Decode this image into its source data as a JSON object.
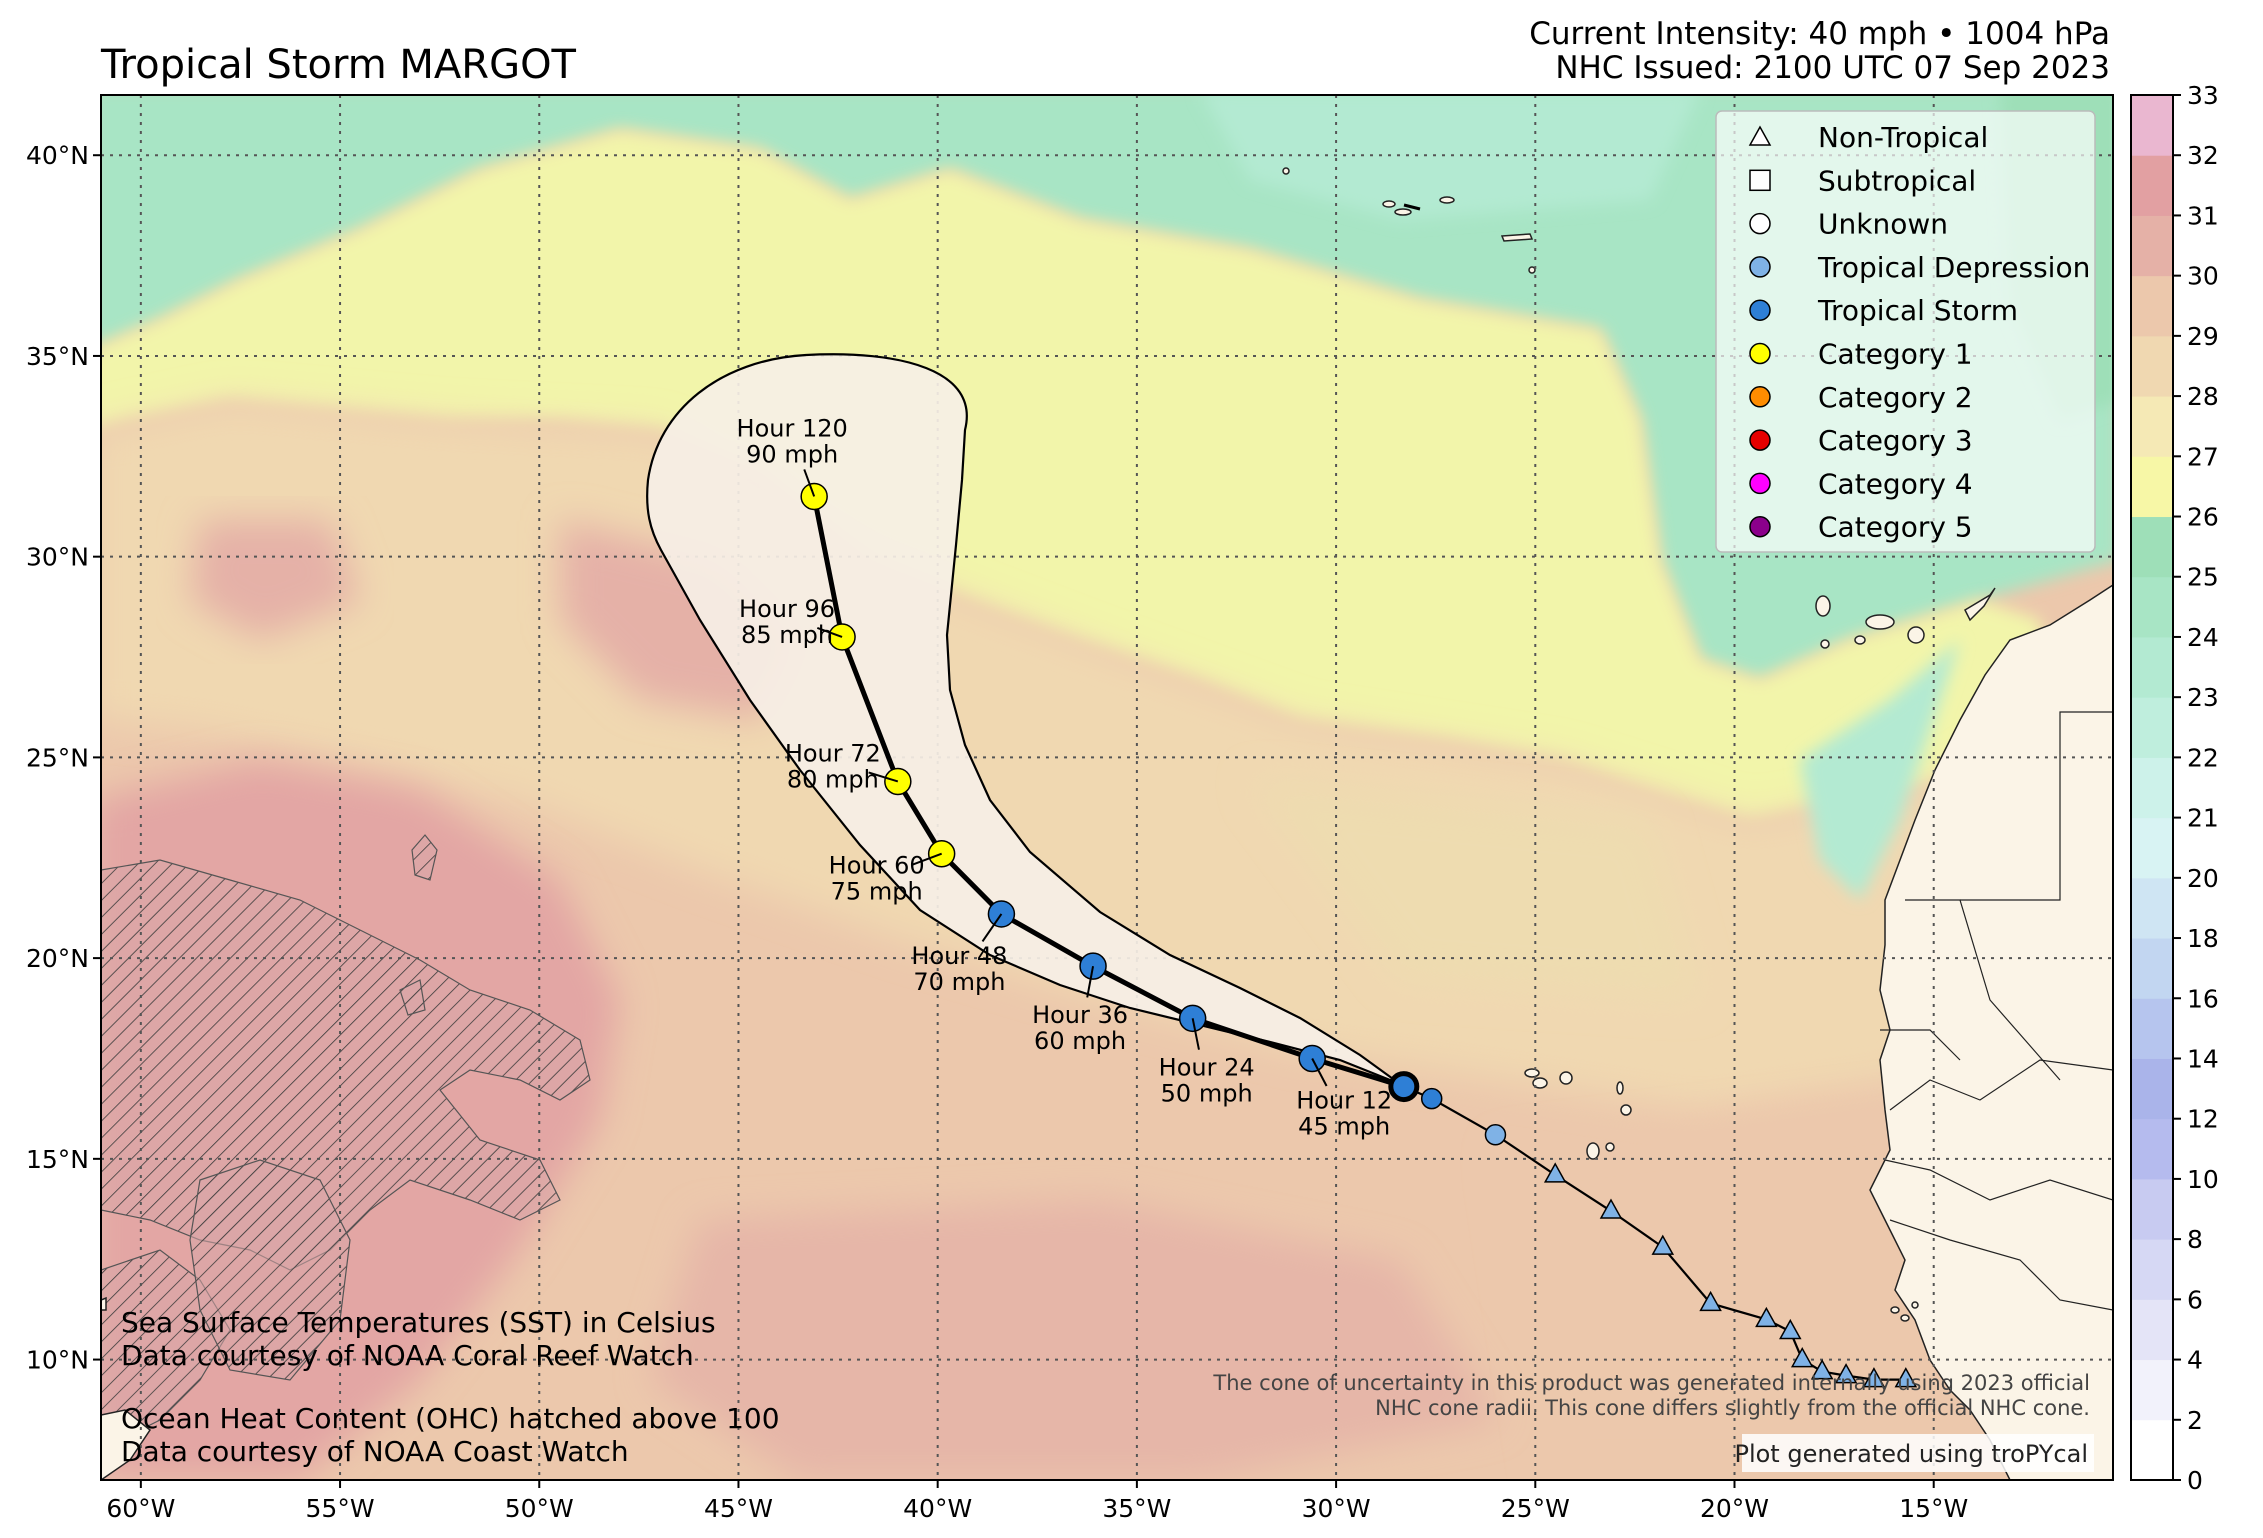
{
  "title": "Tropical Storm MARGOT",
  "header": {
    "intensity": "Current Intensity: 40 mph • 1004 hPa",
    "issued": "NHC Issued: 2100 UTC 07 Sep 2023"
  },
  "map": {
    "lon_range": [
      -61,
      -10.5
    ],
    "lat_range": [
      7,
      41.5
    ],
    "lon_ticks": [
      -60,
      -55,
      -50,
      -45,
      -40,
      -35,
      -30,
      -25,
      -20,
      -15
    ],
    "lon_tick_labels": [
      "60°W",
      "55°W",
      "50°W",
      "45°W",
      "40°W",
      "35°W",
      "30°W",
      "25°W",
      "20°W",
      "15°W"
    ],
    "lat_ticks": [
      10,
      15,
      20,
      25,
      30,
      35,
      40
    ],
    "lat_tick_labels": [
      "10°N",
      "15°N",
      "20°N",
      "25°N",
      "30°N",
      "35°N",
      "40°N"
    ],
    "grid": true
  },
  "legend": {
    "placement": "top-right",
    "items": [
      {
        "label": "Non-Tropical",
        "symbol": "triangle",
        "color": "#ffffff"
      },
      {
        "label": "Subtropical",
        "symbol": "square",
        "color": "#ffffff"
      },
      {
        "label": "Unknown",
        "symbol": "circle",
        "color": "#ffffff"
      },
      {
        "label": "Tropical Depression",
        "symbol": "circle",
        "color": "#7fb2e6"
      },
      {
        "label": "Tropical Storm",
        "symbol": "circle",
        "color": "#2e7fd6"
      },
      {
        "label": "Category 1",
        "symbol": "circle",
        "color": "#ffff00"
      },
      {
        "label": "Category 2",
        "symbol": "circle",
        "color": "#ff8c00"
      },
      {
        "label": "Category 3",
        "symbol": "circle",
        "color": "#e60000"
      },
      {
        "label": "Category 4",
        "symbol": "circle",
        "color": "#ff00ff"
      },
      {
        "label": "Category 5",
        "symbol": "circle",
        "color": "#8b008b"
      }
    ]
  },
  "colorbar": {
    "ticks": [
      0,
      2,
      4,
      6,
      8,
      10,
      12,
      14,
      16,
      18,
      20,
      21,
      22,
      23,
      24,
      25,
      26,
      27,
      28,
      29,
      30,
      31,
      32,
      33
    ],
    "tick_labels": [
      "0",
      "2",
      "4",
      "6",
      "8",
      "10",
      "12",
      "14",
      "16",
      "18",
      "20",
      "21",
      "22",
      "23",
      "24",
      "25",
      "26",
      "27",
      "28",
      "29",
      "30",
      "31",
      "32",
      "33"
    ],
    "colors": [
      "#ffffff",
      "#f2f2fb",
      "#e4e4f7",
      "#d6d8f4",
      "#c8cbf1",
      "#b5bbee",
      "#aab4ea",
      "#b6c5ee",
      "#c2d6f1",
      "#cfe5f3",
      "#d8f3f3",
      "#cdf2ea",
      "#bfeedd",
      "#b3ead2",
      "#a8e5c5",
      "#9edfb8",
      "#f7f7a6",
      "#f5e9b5",
      "#f0d8b1",
      "#ecc8ac",
      "#e5b1a7",
      "#e2a0a2",
      "#eab7d0",
      "#f5d3ea"
    ]
  },
  "track_past": [
    {
      "lon": -15.7,
      "lat": 9.5,
      "type": "Non-Tropical"
    },
    {
      "lon": -16.5,
      "lat": 9.5,
      "type": "Non-Tropical"
    },
    {
      "lon": -17.2,
      "lat": 9.6,
      "type": "Non-Tropical"
    },
    {
      "lon": -17.8,
      "lat": 9.7,
      "type": "Non-Tropical"
    },
    {
      "lon": -18.3,
      "lat": 10.0,
      "type": "Non-Tropical"
    },
    {
      "lon": -18.6,
      "lat": 10.7,
      "type": "Non-Tropical"
    },
    {
      "lon": -19.2,
      "lat": 11.0,
      "type": "Non-Tropical"
    },
    {
      "lon": -20.6,
      "lat": 11.4,
      "type": "Non-Tropical"
    },
    {
      "lon": -21.8,
      "lat": 12.8,
      "type": "Non-Tropical"
    },
    {
      "lon": -23.1,
      "lat": 13.7,
      "type": "Non-Tropical"
    },
    {
      "lon": -24.5,
      "lat": 14.6,
      "type": "Non-Tropical"
    },
    {
      "lon": -26.0,
      "lat": 15.6,
      "type": "Tropical Depression"
    },
    {
      "lon": -27.6,
      "lat": 16.5,
      "type": "Tropical Storm"
    }
  ],
  "forecast": [
    {
      "hour": 0,
      "lon": -28.3,
      "lat": 16.8,
      "wind": "",
      "cat": "Tropical Storm",
      "label": ""
    },
    {
      "hour": 12,
      "lon": -30.6,
      "lat": 17.5,
      "cat": "Tropical Storm",
      "label1": "Hour 12",
      "label2": "45 mph"
    },
    {
      "hour": 24,
      "lon": -33.6,
      "lat": 18.5,
      "cat": "Tropical Storm",
      "label1": "Hour 24",
      "label2": "50 mph"
    },
    {
      "hour": 36,
      "lon": -36.1,
      "lat": 19.8,
      "cat": "Tropical Storm",
      "label1": "Hour 36",
      "label2": "60 mph"
    },
    {
      "hour": 48,
      "lon": -38.4,
      "lat": 21.1,
      "cat": "Tropical Storm",
      "label1": "Hour 48",
      "label2": "70 mph"
    },
    {
      "hour": 60,
      "lon": -39.9,
      "lat": 22.6,
      "cat": "Category 1",
      "label1": "Hour 60",
      "label2": "75 mph"
    },
    {
      "hour": 72,
      "lon": -41.0,
      "lat": 24.4,
      "cat": "Category 1",
      "label1": "Hour 72",
      "label2": "80 mph"
    },
    {
      "hour": 96,
      "lon": -42.4,
      "lat": 28.0,
      "cat": "Category 1",
      "label1": "Hour 96",
      "label2": "85 mph"
    },
    {
      "hour": 120,
      "lon": -43.1,
      "lat": 31.5,
      "cat": "Category 1",
      "label1": "Hour 120",
      "label2": "90 mph"
    }
  ],
  "notes": {
    "sst1": "Sea Surface Temperatures (SST) in Celsius",
    "sst2": "Data courtesy of NOAA Coral Reef Watch",
    "ohc1": "Ocean Heat Content (OHC) hatched above 100",
    "ohc2": "Data courtesy of NOAA Coast Watch",
    "cone1": "The cone of uncertainty in this product was generated internally using 2023 official",
    "cone2": "NHC cone radii. This cone differs slightly from the official NHC cone.",
    "credit": "Plot generated using troPYcal"
  },
  "colors": {
    "land": "#fbf4e7",
    "cone_fill": "#f6efe6",
    "tropical_storm": "#2e7fd6",
    "tropical_depression": "#7fb2e6",
    "category_1": "#ffff00"
  }
}
